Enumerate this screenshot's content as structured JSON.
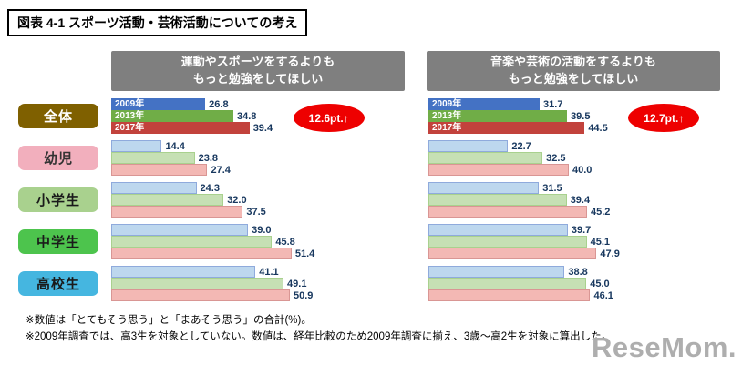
{
  "page_title": "図表 4-1 スポーツ活動・芸術活動についての考え",
  "headers": [
    {
      "line1": "運動やスポーツをするよりも",
      "line2": "もっと勉強をしてほしい"
    },
    {
      "line1": "音楽や芸術の活動をするよりも",
      "line2": "もっと勉強をしてほしい"
    }
  ],
  "chart_data": [
    {
      "type": "bar",
      "orientation": "horizontal",
      "title": "運動やスポーツをするよりももっと勉強をしてほしい",
      "unit": "%",
      "xlim": [
        0,
        60
      ],
      "categories": [
        "全体",
        "幼児",
        "小学生",
        "中学生",
        "高校生"
      ],
      "series": [
        {
          "name": "2009年",
          "values": [
            26.8,
            14.4,
            24.3,
            39.0,
            41.1
          ]
        },
        {
          "name": "2013年",
          "values": [
            34.8,
            23.8,
            32.0,
            45.8,
            49.1
          ]
        },
        {
          "name": "2017年",
          "values": [
            39.4,
            27.4,
            37.5,
            51.4,
            50.9
          ]
        }
      ],
      "annotation": "12.6pt.↑",
      "legend_position": "inside-bars",
      "grid": false
    },
    {
      "type": "bar",
      "orientation": "horizontal",
      "title": "音楽や芸術の活動をするよりももっと勉強をしてほしい",
      "unit": "%",
      "xlim": [
        0,
        60
      ],
      "categories": [
        "全体",
        "幼児",
        "小学生",
        "中学生",
        "高校生"
      ],
      "series": [
        {
          "name": "2009年",
          "values": [
            31.7,
            22.7,
            31.5,
            39.7,
            38.8
          ]
        },
        {
          "name": "2013年",
          "values": [
            39.5,
            32.5,
            39.4,
            45.1,
            45.0
          ]
        },
        {
          "name": "2017年",
          "values": [
            44.5,
            40.0,
            45.2,
            47.9,
            46.1
          ]
        }
      ],
      "annotation": "12.7pt.↑",
      "legend_position": "inside-bars",
      "grid": false
    }
  ],
  "footnotes": {
    "note1": "※数値は「とてもそう思う」と「まあそう思う」の合計(%)。",
    "note2": "※2009年調査では、高3生を対象としていない。数値は、経年比較のため2009年調査に揃え、3歳～高2生を対象に算出した。"
  },
  "watermark": "ReseMom.",
  "colors": {
    "header_bg": "#7f7f7f",
    "annotation_bg": "#ee0000",
    "value_text": "#17375e",
    "series": [
      {
        "name": "2009年",
        "solid": "#4472c4",
        "pastel": "#bdd7ee",
        "border": "#8faadc"
      },
      {
        "name": "2013年",
        "solid": "#70ad47",
        "pastel": "#c6e0b4",
        "border": "#a9d18e"
      },
      {
        "name": "2017年",
        "solid": "#c2423c",
        "pastel": "#f3b8b4",
        "border": "#d99694"
      }
    ],
    "categories": [
      {
        "label": "全体",
        "bg": "#7f6000",
        "fg": "#ffffff"
      },
      {
        "label": "幼児",
        "bg": "#f2afbd",
        "fg": "#333333"
      },
      {
        "label": "小学生",
        "bg": "#a9d18e",
        "fg": "#1a1a1a"
      },
      {
        "label": "中学生",
        "bg": "#4dc44d",
        "fg": "#1a1a1a"
      },
      {
        "label": "高校生",
        "bg": "#45b6e0",
        "fg": "#1a1a1a"
      }
    ]
  }
}
